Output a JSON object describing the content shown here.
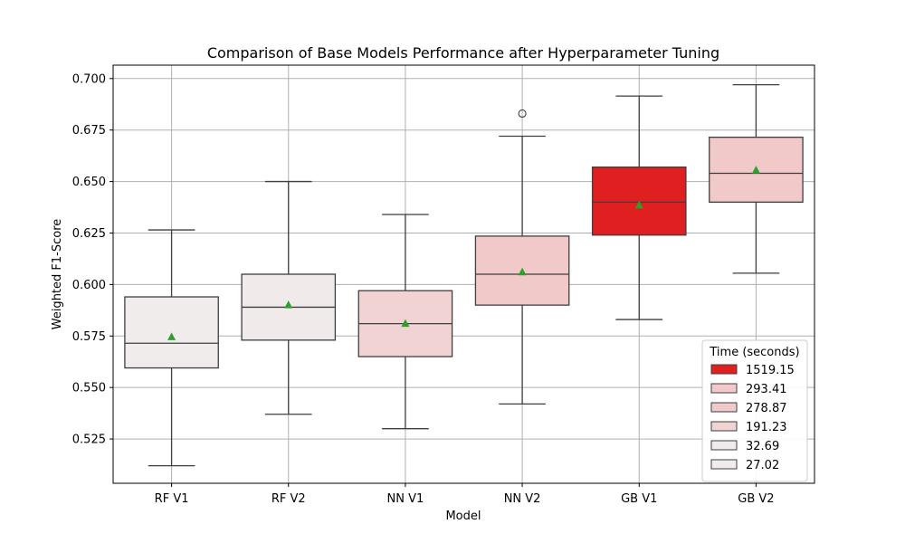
{
  "chart_data": {
    "type": "box",
    "title": "Comparison of Base Models Performance after Hyperparameter Tuning",
    "xlabel": "Model",
    "ylabel": "Weighted F1-Score",
    "ylim": [
      0.5035,
      0.7065
    ],
    "yticks": [
      "0.525",
      "0.550",
      "0.575",
      "0.600",
      "0.625",
      "0.650",
      "0.675",
      "0.700"
    ],
    "ytick_values": [
      0.525,
      0.55,
      0.575,
      0.6,
      0.625,
      0.65,
      0.675,
      0.7
    ],
    "grid": true,
    "categories": [
      "RF V1",
      "RF V2",
      "NN V1",
      "NN V2",
      "GB V1",
      "GB V2"
    ],
    "boxes": [
      {
        "min": 0.512,
        "q1": 0.5595,
        "median": 0.5715,
        "q3": 0.594,
        "max": 0.6265,
        "mean": 0.5745,
        "outliers": [],
        "color": "#f1ecec"
      },
      {
        "min": 0.537,
        "q1": 0.573,
        "median": 0.589,
        "q3": 0.605,
        "max": 0.65,
        "mean": 0.59,
        "outliers": [],
        "color": "#f1eaea"
      },
      {
        "min": 0.53,
        "q1": 0.565,
        "median": 0.581,
        "q3": 0.597,
        "max": 0.634,
        "mean": 0.581,
        "outliers": [],
        "color": "#f2d3d3"
      },
      {
        "min": 0.542,
        "q1": 0.59,
        "median": 0.605,
        "q3": 0.6235,
        "max": 0.672,
        "mean": 0.606,
        "outliers": [
          0.683
        ],
        "color": "#f1c9c9"
      },
      {
        "min": 0.583,
        "q1": 0.624,
        "median": 0.64,
        "q3": 0.657,
        "max": 0.6915,
        "mean": 0.6385,
        "outliers": [],
        "color": "#e01f21"
      },
      {
        "min": 0.6055,
        "q1": 0.64,
        "median": 0.654,
        "q3": 0.6715,
        "max": 0.697,
        "mean": 0.6555,
        "outliers": [],
        "color": "#f1c9c9"
      }
    ],
    "mean_marker_color": "#2ca02c",
    "legend": {
      "title": "Time (seconds)",
      "placement": "lower-right",
      "entries": [
        {
          "label": "1519.15",
          "color": "#e01f21"
        },
        {
          "label": "293.41",
          "color": "#f1c9c9"
        },
        {
          "label": "278.87",
          "color": "#f1c9c9"
        },
        {
          "label": "191.23",
          "color": "#f2d3d3"
        },
        {
          "label": "32.69",
          "color": "#f1eaea"
        },
        {
          "label": "27.02",
          "color": "#f1ecec"
        }
      ]
    }
  }
}
